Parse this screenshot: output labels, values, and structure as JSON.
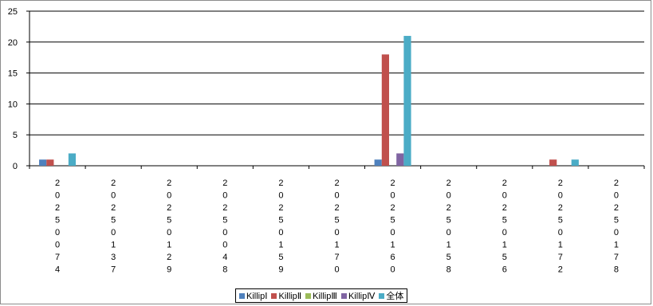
{
  "chart_data": {
    "type": "bar",
    "categories": [
      "20250074",
      "20250137",
      "20250129",
      "20250048",
      "20250159",
      "20250170",
      "20250160",
      "20250158",
      "20250156",
      "20250172",
      "20250178"
    ],
    "series": [
      {
        "name": "KillipⅠ",
        "color": "#4f81bd",
        "values": [
          1,
          0,
          0,
          0,
          0,
          0,
          1,
          0,
          0,
          0,
          0
        ]
      },
      {
        "name": "KillipⅡ",
        "color": "#c0504d",
        "values": [
          1,
          0,
          0,
          0,
          0,
          0,
          18,
          0,
          0,
          1,
          0
        ]
      },
      {
        "name": "KillipⅢ",
        "color": "#9bbb59",
        "values": [
          0,
          0,
          0,
          0,
          0,
          0,
          0,
          0,
          0,
          0,
          0
        ]
      },
      {
        "name": "KillipⅣ",
        "color": "#8064a2",
        "values": [
          0,
          0,
          0,
          0,
          0,
          0,
          2,
          0,
          0,
          0,
          0
        ]
      },
      {
        "name": "全体",
        "color": "#4bacc6",
        "values": [
          2,
          0,
          0,
          0,
          0,
          0,
          21,
          0,
          0,
          1,
          0
        ]
      }
    ],
    "ylim": [
      0,
      25
    ],
    "yticks": [
      "0",
      "5",
      "10",
      "15",
      "20",
      "25"
    ],
    "grid": true,
    "legend_position": "bottom"
  }
}
